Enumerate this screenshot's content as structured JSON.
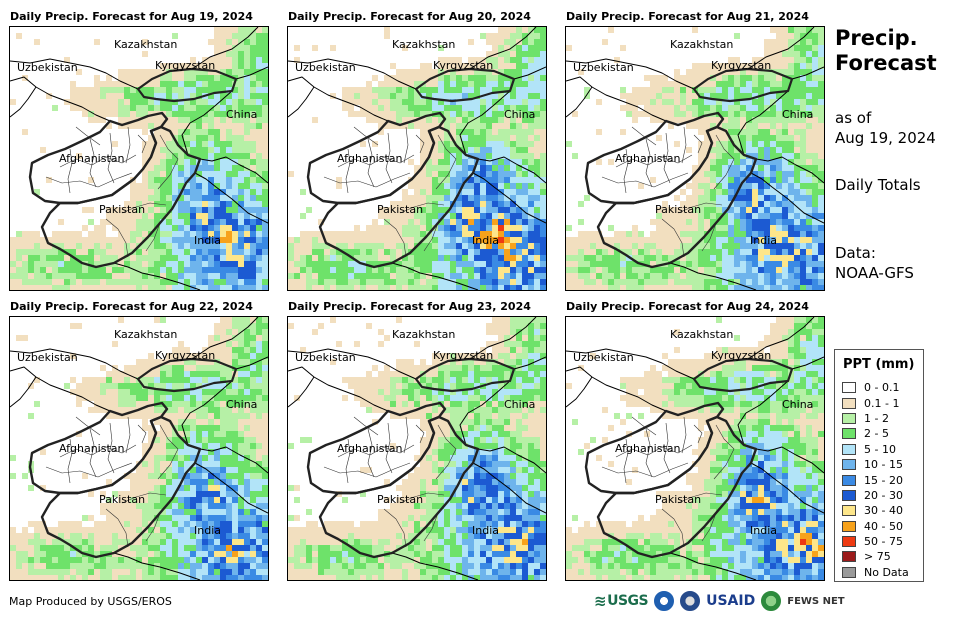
{
  "panels": [
    {
      "title": "Daily Precip. Forecast for Aug 19, 2024",
      "seed": 11,
      "wet": 0.9
    },
    {
      "title": "Daily Precip. Forecast for Aug 20, 2024",
      "seed": 23,
      "wet": 1.25
    },
    {
      "title": "Daily Precip. Forecast for Aug 21, 2024",
      "seed": 37,
      "wet": 1.0
    },
    {
      "title": "Daily Precip. Forecast for Aug 22, 2024",
      "seed": 41,
      "wet": 0.85
    },
    {
      "title": "Daily Precip. Forecast for Aug 23, 2024",
      "seed": 53,
      "wet": 0.95
    },
    {
      "title": "Daily Precip. Forecast for Aug 24, 2024",
      "seed": 67,
      "wet": 1.05
    }
  ],
  "map_labels": [
    "Kazakhstan",
    "Uzbekistan",
    "Kyrgyzstan",
    "China",
    "Afghanistan",
    "Pakistan",
    "India"
  ],
  "side": {
    "title_line1": "Precip.",
    "title_line2": "Forecast",
    "asof_line1": "as of",
    "asof_line2": "Aug 19, 2024",
    "totals": "Daily Totals",
    "data_line1": "Data:",
    "data_line2": "NOAA-GFS"
  },
  "legend": {
    "title": "PPT (mm)",
    "items": [
      {
        "label": "0 - 0.1",
        "color": "#ffffff"
      },
      {
        "label": "0.1 - 1",
        "color": "#f2dfbf"
      },
      {
        "label": "1 - 2",
        "color": "#b6f0a6"
      },
      {
        "label": "2 - 5",
        "color": "#6ee26a"
      },
      {
        "label": "5 - 10",
        "color": "#b2e4f8"
      },
      {
        "label": "10 - 15",
        "color": "#6eb4ec"
      },
      {
        "label": "15 - 20",
        "color": "#3a8ae4"
      },
      {
        "label": "20 - 30",
        "color": "#1c5ad2"
      },
      {
        "label": "30 - 40",
        "color": "#fde68a"
      },
      {
        "label": "40 - 50",
        "color": "#f7a21b"
      },
      {
        "label": "50 - 75",
        "color": "#ee3a12"
      },
      {
        "label": "> 75",
        "color": "#9b1b1b"
      },
      {
        "label": "No Data",
        "color": "#9a9a9a"
      }
    ]
  },
  "footer": {
    "credit": "Map Produced by USGS/EROS",
    "logos": [
      "USGS",
      "USAID",
      "FEWS NET"
    ]
  }
}
